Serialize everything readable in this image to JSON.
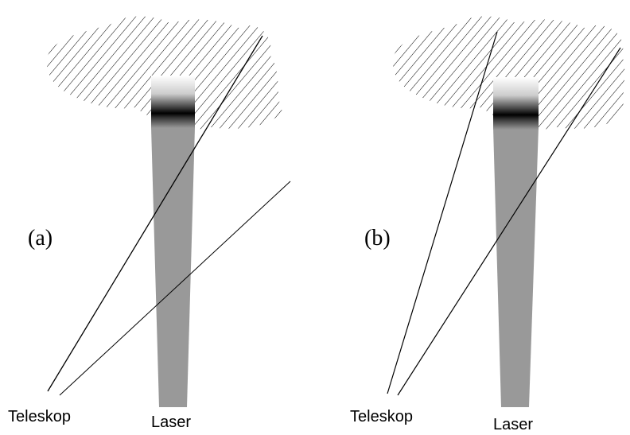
{
  "panels": [
    {
      "label": "(a)",
      "telescope": "Teleskop",
      "laser": "Laser"
    },
    {
      "label": "(b)",
      "telescope": "Teleskop",
      "laser": "Laser"
    }
  ]
}
